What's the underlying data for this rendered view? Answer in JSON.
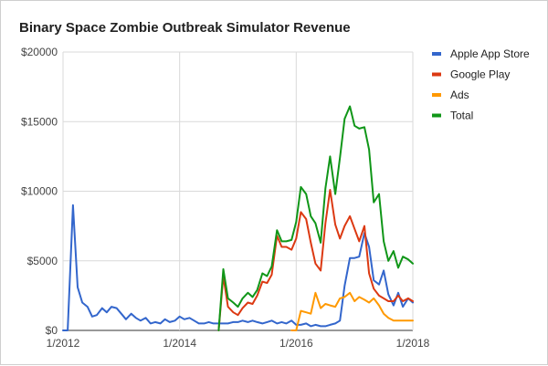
{
  "chart_data": {
    "type": "line",
    "title": "Binary Space Zombie Outbreak Simulator Revenue",
    "xlabel": "",
    "ylabel": "",
    "xlim": [
      2012.0,
      2018.0
    ],
    "ylim": [
      0,
      20000
    ],
    "y_ticks": [
      0,
      5000,
      10000,
      15000,
      20000
    ],
    "y_tick_labels": [
      "$0",
      "$5000",
      "$10000",
      "$15000",
      "$20000"
    ],
    "x_ticks": [
      2012,
      2014,
      2016,
      2018
    ],
    "x_tick_labels": [
      "1/2012",
      "1/2014",
      "1/2016",
      "1/2018"
    ],
    "grid": "vertical and horizontal",
    "legend_position": "right",
    "series": [
      {
        "name": "Apple App Store",
        "color": "#3366cc",
        "x": [
          2012.0,
          2012.08,
          2012.17,
          2012.25,
          2012.33,
          2012.42,
          2012.5,
          2012.58,
          2012.67,
          2012.75,
          2012.83,
          2012.92,
          2013.0,
          2013.08,
          2013.17,
          2013.25,
          2013.33,
          2013.42,
          2013.5,
          2013.58,
          2013.67,
          2013.75,
          2013.83,
          2013.92,
          2014.0,
          2014.08,
          2014.17,
          2014.25,
          2014.33,
          2014.42,
          2014.5,
          2014.58,
          2014.67,
          2014.75,
          2014.83,
          2014.92,
          2015.0,
          2015.08,
          2015.17,
          2015.25,
          2015.33,
          2015.42,
          2015.5,
          2015.58,
          2015.67,
          2015.75,
          2015.83,
          2015.92,
          2016.0,
          2016.08,
          2016.17,
          2016.25,
          2016.33,
          2016.42,
          2016.5,
          2016.58,
          2016.67,
          2016.75,
          2016.83,
          2016.92,
          2017.0,
          2017.08,
          2017.17,
          2017.25,
          2017.33,
          2017.42,
          2017.5,
          2017.58,
          2017.67,
          2017.75,
          2017.83,
          2017.92,
          2018.0
        ],
        "values": [
          0,
          0,
          9000,
          3100,
          2000,
          1700,
          1000,
          1100,
          1600,
          1300,
          1700,
          1600,
          1200,
          800,
          1200,
          900,
          700,
          900,
          500,
          600,
          500,
          800,
          600,
          700,
          1000,
          800,
          900,
          700,
          500,
          500,
          600,
          500,
          500,
          500,
          500,
          600,
          600,
          700,
          600,
          700,
          600,
          500,
          600,
          700,
          500,
          600,
          500,
          700,
          400,
          400,
          500,
          300,
          400,
          300,
          300,
          400,
          500,
          700,
          3200,
          5200,
          5200,
          5300,
          7000,
          6000,
          3600,
          3300,
          4300,
          2600,
          1800,
          2700,
          1700,
          2300,
          2000
        ]
      },
      {
        "name": "Google Play",
        "color": "#dc3912",
        "x": [
          2014.67,
          2014.75,
          2014.83,
          2014.92,
          2015.0,
          2015.08,
          2015.17,
          2015.25,
          2015.33,
          2015.42,
          2015.5,
          2015.58,
          2015.67,
          2015.75,
          2015.83,
          2015.92,
          2016.0,
          2016.08,
          2016.17,
          2016.25,
          2016.33,
          2016.42,
          2016.5,
          2016.58,
          2016.67,
          2016.75,
          2016.83,
          2016.92,
          2017.0,
          2017.08,
          2017.17,
          2017.25,
          2017.33,
          2017.42,
          2017.5,
          2017.58,
          2017.67,
          2017.75,
          2017.83,
          2017.92,
          2018.0
        ],
        "values": [
          0,
          3900,
          1700,
          1300,
          1100,
          1600,
          2000,
          1900,
          2500,
          3500,
          3400,
          4000,
          6800,
          6000,
          6000,
          5800,
          6600,
          8500,
          8000,
          6300,
          4800,
          4300,
          7700,
          10100,
          7600,
          6600,
          7500,
          8200,
          7300,
          6400,
          7500,
          4100,
          3000,
          2500,
          2300,
          2100,
          2100,
          2500,
          2100,
          2300,
          2100
        ]
      },
      {
        "name": "Ads",
        "color": "#ff9900",
        "x": [
          2015.92,
          2016.0,
          2016.08,
          2016.17,
          2016.25,
          2016.33,
          2016.42,
          2016.5,
          2016.58,
          2016.67,
          2016.75,
          2016.83,
          2016.92,
          2017.0,
          2017.08,
          2017.17,
          2017.25,
          2017.33,
          2017.42,
          2017.5,
          2017.58,
          2017.67,
          2017.75,
          2017.83,
          2017.92,
          2018.0
        ],
        "values": [
          0,
          0,
          1400,
          1300,
          1200,
          2700,
          1600,
          1900,
          1800,
          1700,
          2300,
          2400,
          2700,
          2100,
          2400,
          2200,
          2000,
          2300,
          1800,
          1200,
          900,
          700,
          700,
          700,
          700,
          700
        ]
      },
      {
        "name": "Total",
        "color": "#109618",
        "x": [
          2014.67,
          2014.75,
          2014.83,
          2014.92,
          2015.0,
          2015.08,
          2015.17,
          2015.25,
          2015.33,
          2015.42,
          2015.5,
          2015.58,
          2015.67,
          2015.75,
          2015.83,
          2015.92,
          2016.0,
          2016.08,
          2016.17,
          2016.25,
          2016.33,
          2016.42,
          2016.5,
          2016.58,
          2016.67,
          2016.75,
          2016.83,
          2016.92,
          2017.0,
          2017.08,
          2017.17,
          2017.25,
          2017.33,
          2017.42,
          2017.5,
          2017.58,
          2017.67,
          2017.75,
          2017.83,
          2017.92,
          2018.0
        ],
        "values": [
          0,
          4400,
          2300,
          2000,
          1700,
          2300,
          2700,
          2400,
          2900,
          4100,
          3900,
          4600,
          7200,
          6400,
          6400,
          6500,
          7800,
          10300,
          9800,
          8200,
          7700,
          6300,
          10200,
          12500,
          9800,
          12400,
          15200,
          16100,
          14700,
          14500,
          14600,
          13000,
          9200,
          9800,
          6400,
          5000,
          5700,
          4500,
          5300,
          5100,
          4800
        ]
      }
    ]
  }
}
